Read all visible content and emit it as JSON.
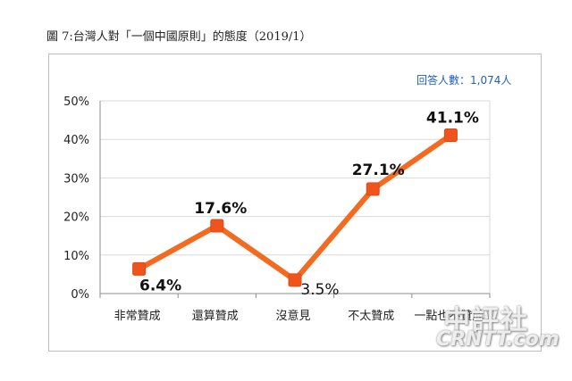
{
  "title": "圖 7:台灣人對「一個中國原則」的態度（2019/1）",
  "sample_note": "回答人數：1,074人",
  "watermark": {
    "chinese": "中評社",
    "english": "CRNTT.com"
  },
  "colors": {
    "line": "#f26b21",
    "marker": "#f0541e",
    "grid": "#d9d9d9",
    "axis": "#8c8c8c",
    "note": "#1f5fbf"
  },
  "chart_data": {
    "type": "line",
    "title": "圖 7:台灣人對「一個中國原則」的態度（2019/1）",
    "categories": [
      "非常贊成",
      "還算贊成",
      "沒意見",
      "不太贊成",
      "一點也不贊成"
    ],
    "values": [
      6.4,
      17.6,
      3.5,
      27.1,
      41.1
    ],
    "data_labels": [
      "6.4%",
      "17.6%",
      "3.5%",
      "27.1%",
      "41.1%"
    ],
    "y_ticks": [
      "0%",
      "10%",
      "20%",
      "30%",
      "40%",
      "50%"
    ],
    "ylim": [
      0,
      50
    ],
    "grid": true,
    "legend": "none"
  }
}
